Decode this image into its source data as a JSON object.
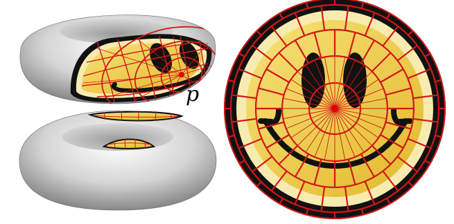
{
  "annotations": {
    "point_label": "p"
  },
  "colors": {
    "face_yellow": "#f2d23a",
    "face_light": "#f7ebb0",
    "outer_ring": "#000000",
    "grid_red": "#d01818",
    "point_red": "#e00000",
    "torus_gray": "#c8c8c8",
    "features": "#111111"
  },
  "icons": [
    "smiley-face"
  ]
}
